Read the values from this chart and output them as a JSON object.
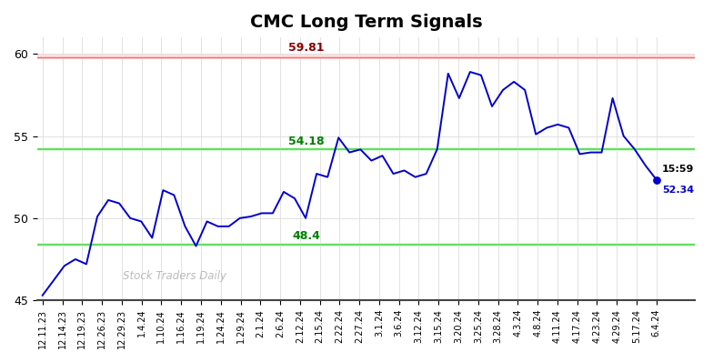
{
  "title": "CMC Long Term Signals",
  "watermark": "Stock Traders Daily",
  "red_line": 59.81,
  "green_line_upper": 54.18,
  "green_line_lower": 48.4,
  "last_price": 52.34,
  "last_time": "15:59",
  "label_54": "54.18",
  "label_48": "48.4",
  "label_59": "59.81",
  "ylim": [
    45,
    61
  ],
  "yticks": [
    45,
    50,
    55,
    60
  ],
  "x_labels": [
    "12.11.23",
    "12.14.23",
    "12.19.23",
    "12.26.23",
    "12.29.23",
    "1.4.24",
    "1.10.24",
    "1.16.24",
    "1.19.24",
    "1.24.24",
    "1.29.24",
    "2.1.24",
    "2.6.24",
    "2.12.24",
    "2.15.24",
    "2.22.24",
    "2.27.24",
    "3.1.24",
    "3.6.24",
    "3.12.24",
    "3.15.24",
    "3.20.24",
    "3.25.24",
    "3.28.24",
    "4.3.24",
    "4.8.24",
    "4.11.24",
    "4.17.24",
    "4.23.24",
    "4.29.24",
    "5.17.24",
    "6.4.24"
  ],
  "px": [
    45.3,
    46.2,
    47.1,
    47.5,
    47.2,
    50.1,
    51.1,
    50.9,
    50.0,
    49.8,
    48.8,
    51.7,
    51.4,
    49.5,
    48.3,
    49.8,
    49.5,
    49.5,
    50.0,
    50.1,
    50.3,
    50.3,
    51.6,
    51.2,
    50.0,
    52.7,
    52.5,
    54.9,
    54.0,
    54.18,
    53.5,
    53.8,
    52.7,
    52.9,
    52.5,
    52.7,
    54.2,
    58.8,
    57.3,
    58.9,
    58.7,
    56.8,
    57.8,
    58.3,
    57.8,
    55.1,
    55.5,
    55.7,
    55.5,
    53.9,
    54.0,
    54.0,
    57.3,
    55.0,
    54.2,
    53.2,
    52.34
  ],
  "line_color": "#0000cc",
  "red_line_color": "#ff6666",
  "red_bg_color": "#ffdddd",
  "green_line_color": "#66dd66",
  "green_bg_color": "#ddffdd",
  "bg_color": "#ffffff",
  "watermark_color": "#bbbbbb",
  "grid_color": "#dddddd",
  "title_fontsize": 14,
  "tick_fontsize": 7,
  "red_band_half": 0.12,
  "green_band_half": 0.12
}
